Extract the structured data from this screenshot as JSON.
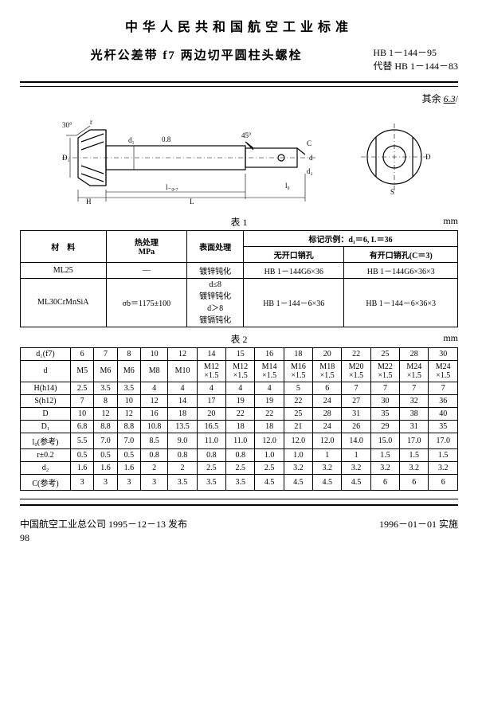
{
  "header": {
    "title": "中华人民共和国航空工业标准",
    "subtitle": "光杆公差带 f7 两边切平圆柱头螺栓",
    "code": "HB 1－144－95",
    "replaces": "代替 HB 1－144－83"
  },
  "note_right": "其余",
  "note_symbol": "6.3",
  "diagram_labels": {
    "angle1": "30°",
    "angle2": "45°",
    "r": "r",
    "D1": "D₁",
    "H": "H",
    "d1": "d₁",
    "l_tol": "l₋₀.₇",
    "L": "L",
    "c": "C",
    "d": "d",
    "d2": "d₂",
    "l0": "l₀",
    "S": "S",
    "D": "D",
    "ra08": "0.8"
  },
  "table1": {
    "caption": "表 1",
    "unit": "mm",
    "head": {
      "c1": "材　料",
      "c2": "热处理\nMPa",
      "c3": "表面处理",
      "c4": "标记示例：d₁＝6, L＝36",
      "c4a": "无开口销孔",
      "c4b": "有开口销孔(C＝3)"
    },
    "rows": [
      {
        "mat": "ML25",
        "heat": "—",
        "surf": "镀锌钝化",
        "a": "HB 1－144G6×36",
        "b": "HB 1－144G6×36×3"
      },
      {
        "mat": "ML30CrMnSiA",
        "heat": "σb＝1175±100",
        "surf": "d≤8\n镀锌钝化\nd＞8\n镀镉钝化",
        "a": "HB 1－144－6×36",
        "b": "HB 1－144－6×36×3"
      }
    ]
  },
  "table2": {
    "caption": "表 2",
    "unit": "mm",
    "row_labels": [
      "d₁(f7)",
      "d",
      "H(h14)",
      "S(h12)",
      "D",
      "D₁",
      "l₀(参考)",
      "r±0.2",
      "d₂",
      "C(参考)"
    ],
    "d1": [
      "6",
      "7",
      "8",
      "10",
      "12",
      "14",
      "15",
      "16",
      "18",
      "20",
      "22",
      "25",
      "28",
      "30"
    ],
    "d": [
      "M5",
      "M6",
      "M6",
      "M8",
      "M10",
      "M12\n×1.5",
      "M12\n×1.5",
      "M14\n×1.5",
      "M16\n×1.5",
      "M18\n×1.5",
      "M20\n×1.5",
      "M22\n×1.5",
      "M24\n×1.5",
      "M24\n×1.5"
    ],
    "H": [
      "2.5",
      "3.5",
      "3.5",
      "4",
      "4",
      "4",
      "4",
      "4",
      "5",
      "6",
      "7",
      "7",
      "7",
      "7"
    ],
    "S": [
      "7",
      "8",
      "10",
      "12",
      "14",
      "17",
      "19",
      "19",
      "22",
      "24",
      "27",
      "30",
      "32",
      "36"
    ],
    "D": [
      "10",
      "12",
      "12",
      "16",
      "18",
      "20",
      "22",
      "22",
      "25",
      "28",
      "31",
      "35",
      "38",
      "40"
    ],
    "D1": [
      "6.8",
      "8.8",
      "8.8",
      "10.8",
      "13.5",
      "16.5",
      "18",
      "18",
      "21",
      "24",
      "26",
      "29",
      "31",
      "35"
    ],
    "l0": [
      "5.5",
      "7.0",
      "7.0",
      "8.5",
      "9.0",
      "11.0",
      "11.0",
      "12.0",
      "12.0",
      "12.0",
      "14.0",
      "15.0",
      "17.0",
      "17.0"
    ],
    "r": [
      "0.5",
      "0.5",
      "0.5",
      "0.8",
      "0.8",
      "0.8",
      "0.8",
      "1.0",
      "1.0",
      "1",
      "1",
      "1.5",
      "1.5",
      "1.5"
    ],
    "d2": [
      "1.6",
      "1.6",
      "1.6",
      "2",
      "2",
      "2.5",
      "2.5",
      "2.5",
      "3.2",
      "3.2",
      "3.2",
      "3.2",
      "3.2",
      "3.2"
    ],
    "C": [
      "3",
      "3",
      "3",
      "3",
      "3.5",
      "3.5",
      "3.5",
      "4.5",
      "4.5",
      "4.5",
      "4.5",
      "6",
      "6",
      "6"
    ]
  },
  "footer": {
    "left": "中国航空工业总公司 1995－12－13 发布",
    "right": "1996－01－01 实施",
    "page": "98"
  }
}
